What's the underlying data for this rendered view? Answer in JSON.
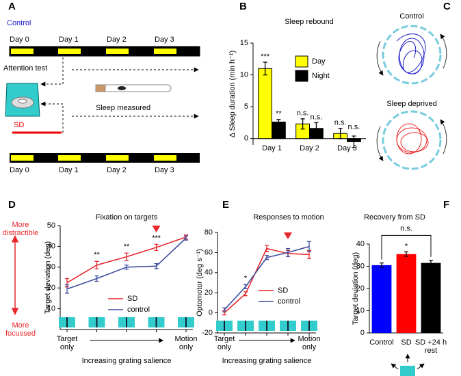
{
  "panel_a": {
    "label": "A",
    "condition": "Control",
    "days_top": [
      "Day 0",
      "Day 1",
      "Day 2",
      "Day 3"
    ],
    "days_bottom": [
      "Day 0",
      "Day 1",
      "Day 2",
      "Day 3"
    ],
    "attention_test": "Attention test",
    "sleep_measured": "Sleep measured",
    "sd": "SD"
  },
  "panel_c": {
    "label": "C",
    "conditions": [
      "Control",
      "Sleep deprived"
    ]
  },
  "panel_d_scale": {
    "top": "More distractible",
    "bottom": "More focussed"
  },
  "chart_data": [
    {
      "type": "bar",
      "panel": "B",
      "title": "Sleep rebound",
      "y_label": "Δ Sleep duration (min h⁻¹)",
      "categories": [
        "Day 1",
        "Day 2",
        "Day 3"
      ],
      "series": [
        {
          "name": "Day",
          "color": "#ffff00",
          "values": [
            11,
            2.3,
            0.8
          ],
          "errors": [
            1,
            0.8,
            0.8
          ],
          "annotations": [
            "***",
            "n.s.",
            "n.s."
          ]
        },
        {
          "name": "Night",
          "color": "#000000",
          "values": [
            2.6,
            1.6,
            -0.5
          ],
          "errors": [
            0.4,
            0.9,
            0.9
          ],
          "annotations": [
            "**",
            "n.s.",
            "n.s."
          ]
        }
      ],
      "ylim": [
        -1,
        15
      ],
      "yticks": [
        0,
        5,
        10,
        15
      ],
      "legend": "upper right"
    },
    {
      "type": "line",
      "panel": "D",
      "title": "Fixation on targets",
      "x_label": "Increasing grating salience",
      "y_label": "Target deviation (deg)",
      "categories": [
        "Target only",
        null,
        null,
        null,
        "Motion only"
      ],
      "series": [
        {
          "name": "SD",
          "color": "#e8262b",
          "values": [
            22.5,
            31,
            35,
            39.5,
            44.5
          ],
          "errors": [
            2,
            1.8,
            1.8,
            1.5,
            1
          ],
          "annotations": [
            null,
            "**",
            "**",
            "***",
            null
          ]
        },
        {
          "name": "control",
          "color": "#3f4e9f",
          "values": [
            19.5,
            24.5,
            30,
            30.5,
            44
          ],
          "errors": [
            2,
            1.3,
            1,
            1.2,
            1
          ]
        }
      ],
      "ylim": [
        0,
        50
      ],
      "yticks": [
        10,
        20,
        30,
        40,
        50
      ],
      "legend": "lower right",
      "highlight": 3
    },
    {
      "type": "line",
      "panel": "E",
      "title": "Responses to motion",
      "x_label": "Increasing grating salience",
      "y_label": "Optomotor (deg s⁻¹)",
      "categories": [
        "Target only",
        null,
        null,
        null,
        "Motion only"
      ],
      "series": [
        {
          "name": "SD",
          "color": "#e8262b",
          "values": [
            0,
            19,
            64,
            59,
            58
          ],
          "errors": [
            2,
            2,
            3,
            3,
            4
          ],
          "annotations": [
            null,
            "*",
            null,
            null,
            null
          ]
        },
        {
          "name": "control",
          "color": "#3f4e9f",
          "values": [
            3,
            26,
            55,
            60,
            66
          ],
          "errors": [
            2,
            2,
            2,
            4,
            5
          ]
        }
      ],
      "ylim": [
        -20,
        80
      ],
      "yticks": [
        -20,
        0,
        20,
        40,
        60,
        80
      ],
      "legend": "lower right",
      "highlight": 3
    },
    {
      "type": "bar",
      "panel": "F",
      "title": "Recovery from SD",
      "y_label": "Target deviation (deg)",
      "categories": [
        "Control",
        "SD",
        "SD +24 h rest"
      ],
      "values": [
        30.5,
        35.5,
        31.5
      ],
      "errors": [
        1,
        1,
        1.2
      ],
      "colors": [
        "#0000ff",
        "#ff0000",
        "#000000"
      ],
      "annotations": [
        null,
        "*",
        null
      ],
      "bracket": "n.s.",
      "ylim": [
        0,
        40
      ],
      "yticks": [
        0,
        10,
        20,
        30,
        40
      ]
    }
  ]
}
